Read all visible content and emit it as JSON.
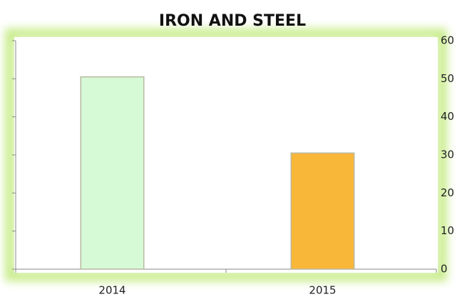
{
  "chart_data": {
    "type": "bar",
    "title": "IRON AND STEEL",
    "categories": [
      "2014",
      "2015"
    ],
    "values": [
      50.5,
      30.5
    ],
    "colors": [
      "#d6f9d6",
      "#f9b73a"
    ],
    "ylim": [
      0,
      60
    ],
    "yticks": [
      0,
      10,
      20,
      30,
      40,
      50,
      60
    ],
    "y_axis_side": "right"
  }
}
